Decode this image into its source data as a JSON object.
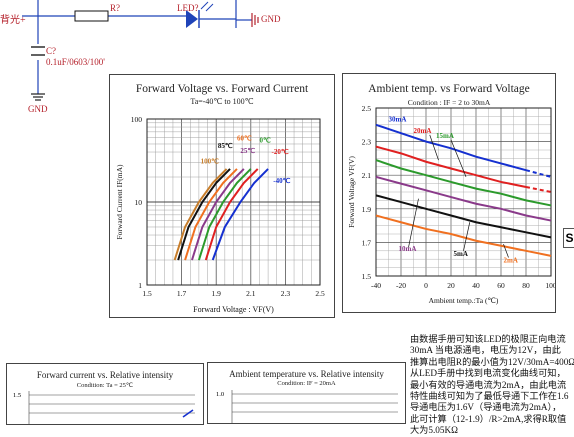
{
  "schematic": {
    "net_left": "背光+",
    "resistor_ref": "R?",
    "led_ref": "LED?",
    "gnd_right": "GND",
    "cap_ref": "C?",
    "cap_value": "0.1uF/0603/100'",
    "gnd_bottom": "GND",
    "colors": {
      "wire": "#1f43b8",
      "label": "#b5212b",
      "ink": "#1e1e1e"
    }
  },
  "chart1": {
    "title": "Forward Voltage vs. Forward Current",
    "subtitle": "Ta=-40℃ to 100℃",
    "ylabel": "Forward Current IF(mA)",
    "xlabel": "Forward Voltage : VF(V)",
    "yticks": [
      "100",
      "10",
      "1"
    ],
    "xticks": [
      "1.5",
      "1.7",
      "1.9",
      "2.1",
      "2.3",
      "2.5"
    ],
    "labels": {
      "t100": "100℃",
      "t85": "85℃",
      "t60": "60℃",
      "t25": "25℃",
      "t0": "0℃",
      "tm20": "-20℃",
      "tm40": "-40℃"
    }
  },
  "chart2": {
    "title": "Ambient temp. vs  Forward Voltage",
    "subtitle": "Condition : IF = 2 to 30mA",
    "ylabel": "Forward  Voltage VF(V)",
    "xlabel": "Ambient temp.:Ta (℃)",
    "yticks": [
      "2.5",
      "2.3",
      "2.1",
      "1.9",
      "1.7",
      "1.5"
    ],
    "xticks": [
      "-40",
      "-20",
      "0",
      "20",
      "40",
      "60",
      "80",
      "100"
    ],
    "labels": {
      "i30": "30mA",
      "i20": "20mA",
      "i15": "15mA",
      "i10": "10mA",
      "i5": "5mA",
      "i2": "2mA"
    }
  },
  "chart3": {
    "title": "Forward current vs. Relative intensity",
    "subtitle": "Condition: Ta = 25℃",
    "ytick": "1.5"
  },
  "chart4": {
    "title": "Ambient temperature vs. Relative intensity",
    "subtitle": "Condition: IF = 20mA",
    "ytick": "1.0"
  },
  "edge_letter": "S",
  "note": {
    "text": "由数据手册可知该LED的极限正向电流\n30mA 当电源通电，电压为12V，由此\n推算出电阻R的最小值为12V/30mA=400Ω\n从LED手册中找到电流变化曲线可知，\n最小有效的导通电流为2mA，由此电流\n特性曲线可知为了最低导通下工作在1.6\n导通电压为1.6V（导通电流为2mA），\n此可计算（12-1.9）/R>2mA,求得R取值\n大为5.05KΩ"
  },
  "chart_data": [
    {
      "type": "line",
      "title": "Forward Voltage vs. Forward Current",
      "subtitle": "Ta=-40℃ to 100℃",
      "xlabel": "Forward Voltage : VF(V)",
      "ylabel": "Forward Current IF(mA)",
      "xlim": [
        1.5,
        2.5
      ],
      "ylim": [
        1,
        100
      ],
      "yscale": "log",
      "grid": true,
      "series": [
        {
          "name": "100℃",
          "color": "#c87e2b",
          "x": [
            1.66,
            1.72,
            1.8,
            1.88,
            1.96
          ],
          "y": [
            2,
            5,
            10,
            17,
            25
          ]
        },
        {
          "name": "85℃",
          "color": "#111111",
          "x": [
            1.68,
            1.74,
            1.82,
            1.9,
            1.98
          ],
          "y": [
            2,
            5,
            10,
            17,
            25
          ]
        },
        {
          "name": "60℃",
          "color": "#f07020",
          "x": [
            1.72,
            1.78,
            1.86,
            1.94,
            2.02
          ],
          "y": [
            2,
            5,
            10,
            17,
            25
          ]
        },
        {
          "name": "25℃",
          "color": "#8a3a8a",
          "x": [
            1.76,
            1.82,
            1.9,
            1.98,
            2.06
          ],
          "y": [
            2,
            5,
            10,
            17,
            25
          ]
        },
        {
          "name": "0℃",
          "color": "#2c9a2c",
          "x": [
            1.8,
            1.86,
            1.94,
            2.02,
            2.1
          ],
          "y": [
            2,
            5,
            10,
            17,
            25
          ]
        },
        {
          "name": "-20℃",
          "color": "#e02020",
          "x": [
            1.84,
            1.9,
            1.98,
            2.06,
            2.14
          ],
          "y": [
            2,
            5,
            10,
            17,
            25
          ]
        },
        {
          "name": "-40℃",
          "color": "#1530d0",
          "x": [
            1.88,
            1.95,
            2.04,
            2.12,
            2.2
          ],
          "y": [
            2,
            5,
            10,
            17,
            25
          ]
        }
      ]
    },
    {
      "type": "line",
      "title": "Ambient temp. vs  Forward Voltage",
      "subtitle": "Condition : IF = 2 to 30mA",
      "xlabel": "Ambient temp.:Ta (℃)",
      "ylabel": "Forward  Voltage VF(V)",
      "xlim": [
        -40,
        100
      ],
      "ylim": [
        1.5,
        2.5
      ],
      "grid": true,
      "x": [
        -40,
        -20,
        0,
        20,
        40,
        60,
        80,
        100
      ],
      "series": [
        {
          "name": "30mA",
          "color": "#1530d0",
          "values": [
            2.4,
            2.35,
            2.3,
            2.26,
            2.21,
            2.17,
            2.13,
            2.09
          ]
        },
        {
          "name": "20mA",
          "color": "#e02020",
          "values": [
            2.27,
            2.23,
            2.18,
            2.14,
            2.1,
            2.06,
            2.03,
            2.0
          ]
        },
        {
          "name": "15mA",
          "color": "#2c9a2c",
          "values": [
            2.19,
            2.14,
            2.1,
            2.06,
            2.02,
            1.99,
            1.95,
            1.92
          ]
        },
        {
          "name": "10mA",
          "color": "#8a3a8a",
          "values": [
            2.09,
            2.05,
            2.01,
            1.97,
            1.93,
            1.9,
            1.86,
            1.83
          ]
        },
        {
          "name": "5mA",
          "color": "#111111",
          "values": [
            1.98,
            1.94,
            1.9,
            1.86,
            1.82,
            1.79,
            1.76,
            1.73
          ]
        },
        {
          "name": "2mA",
          "color": "#f07020",
          "values": [
            1.86,
            1.82,
            1.78,
            1.75,
            1.71,
            1.68,
            1.65,
            1.62
          ]
        }
      ]
    }
  ]
}
